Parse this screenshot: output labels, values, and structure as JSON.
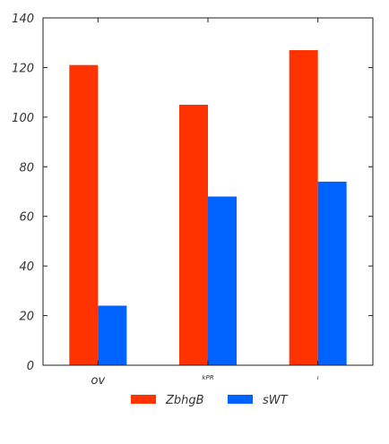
{
  "chart_data": {
    "type": "bar",
    "categories": [
      "ov",
      "kPR",
      "ı"
    ],
    "series": [
      {
        "name": "ZbhgB",
        "color": "#ff3300",
        "values": [
          121,
          105,
          127
        ]
      },
      {
        "name": "sWT",
        "color": "#0062ff",
        "values": [
          24,
          68,
          74
        ]
      }
    ],
    "ylim": [
      0,
      140
    ],
    "yticks": [
      0,
      20,
      40,
      60,
      80,
      100,
      120,
      140
    ],
    "grid": false,
    "legend": "bottom"
  }
}
